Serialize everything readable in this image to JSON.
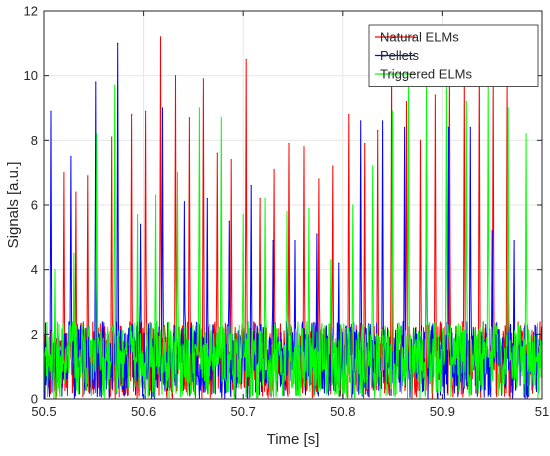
{
  "chart_data": {
    "type": "line",
    "title": "",
    "xlabel": "Time [s]",
    "ylabel": "Signals [a.u.]",
    "xlim": [
      50.5,
      51
    ],
    "ylim": [
      0,
      12
    ],
    "xticks": [
      50.5,
      50.6,
      50.7,
      50.8,
      50.9,
      51
    ],
    "xtick_labels": [
      "50.5",
      "50.6",
      "50.7",
      "50.8",
      "50.9",
      "51"
    ],
    "yticks": [
      0,
      2,
      4,
      6,
      8,
      10,
      12
    ],
    "ytick_labels": [
      "0",
      "2",
      "4",
      "6",
      "8",
      "10",
      "12"
    ],
    "grid": true,
    "legend_position": "top-right",
    "baseline_noise_range": [
      0,
      2.4
    ],
    "series": [
      {
        "name": "Natural ELMs",
        "color": "#ff0000",
        "peaks_x": [
          50.52,
          50.532,
          50.544,
          50.568,
          50.588,
          50.602,
          50.617,
          50.632,
          50.646,
          50.66,
          50.674,
          50.688,
          50.703,
          50.717,
          50.731,
          50.746,
          50.761,
          50.776,
          50.79,
          50.806,
          50.822,
          50.835,
          50.849,
          50.864,
          50.878,
          50.893,
          50.907,
          50.922,
          50.937,
          50.951,
          50.965
        ],
        "peaks_y": [
          7.0,
          6.4,
          6.9,
          8.1,
          8.8,
          8.9,
          11.2,
          10.0,
          8.7,
          9.9,
          7.6,
          7.4,
          10.5,
          6.2,
          7.1,
          7.9,
          7.8,
          6.8,
          7.2,
          8.8,
          7.9,
          8.3,
          10.3,
          9.2,
          8.0,
          9.4,
          10.2,
          10.0,
          10.4,
          10.0,
          9.9
        ]
      },
      {
        "name": "Pellets",
        "color": "#0000ff",
        "peaks_x": [
          50.507,
          50.527,
          50.552,
          50.574,
          50.597,
          50.619,
          50.641,
          50.664,
          50.686,
          50.708,
          50.73,
          50.752,
          50.774,
          50.796,
          50.818,
          50.84,
          50.862,
          50.884,
          50.906,
          50.928,
          50.95,
          50.972
        ],
        "peaks_y": [
          8.9,
          7.5,
          9.8,
          11.0,
          5.4,
          9.0,
          6.1,
          6.2,
          5.5,
          6.6,
          4.9,
          4.9,
          5.1,
          4.2,
          8.6,
          8.6,
          8.4,
          7.9,
          8.4,
          8.4,
          5.2,
          4.9
        ]
      },
      {
        "name": "Triggered ELMs",
        "color": "#00ff00",
        "peaks_x": [
          50.511,
          50.53,
          50.553,
          50.571,
          50.594,
          50.612,
          50.634,
          50.656,
          50.678,
          50.7,
          50.722,
          50.744,
          50.766,
          50.788,
          50.81,
          50.83,
          50.85,
          50.866,
          50.884,
          50.904,
          50.924,
          50.946,
          50.966,
          50.984
        ],
        "peaks_y": [
          4.0,
          4.5,
          8.2,
          9.7,
          5.7,
          6.3,
          7.0,
          9.0,
          8.7,
          5.7,
          6.2,
          5.8,
          5.9,
          4.3,
          6.0,
          7.2,
          8.9,
          9.9,
          9.7,
          9.7,
          9.2,
          9.8,
          9.0,
          8.2
        ]
      }
    ]
  }
}
